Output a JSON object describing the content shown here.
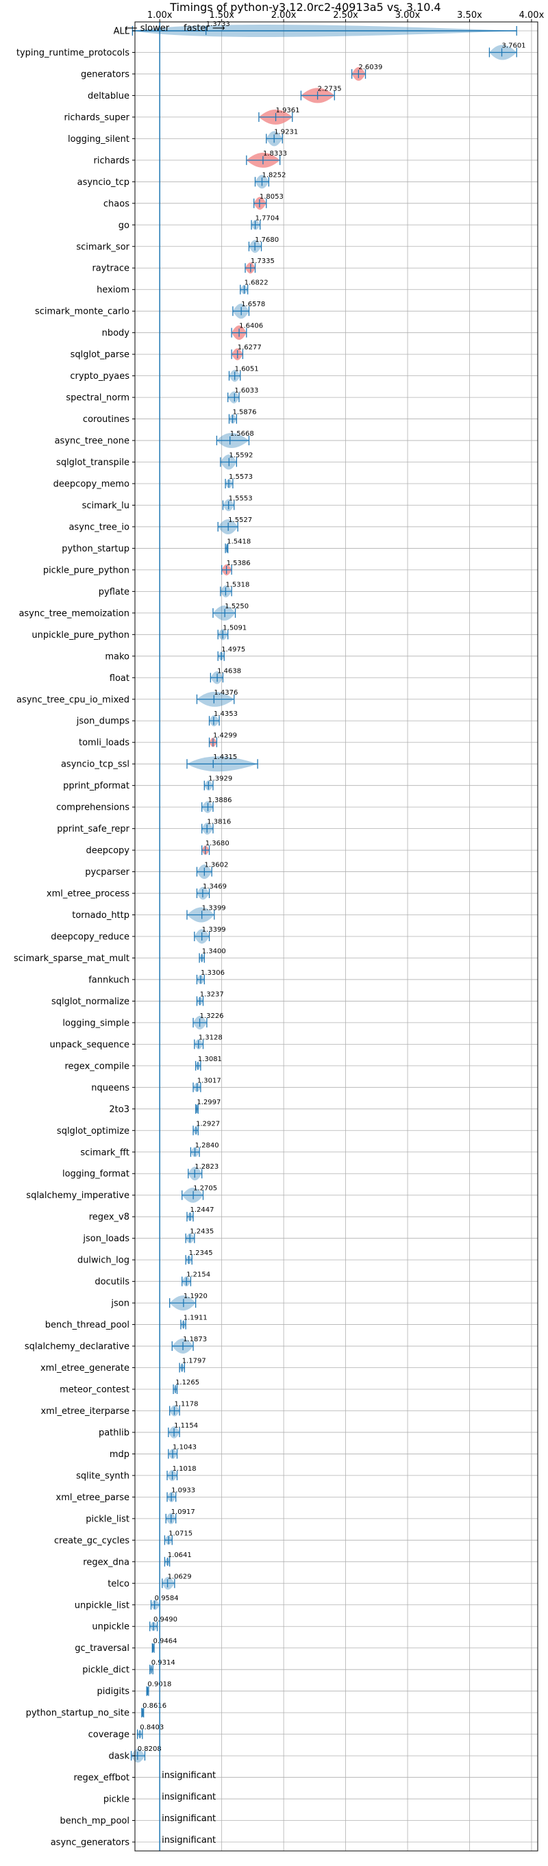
{
  "chart_data": {
    "type": "violin",
    "title": "Timings of python-v3.12.0rc2-40913a5 vs. 3.10.4",
    "direction_left": "⟵ slower",
    "direction_right": "faster ⟶",
    "xlim": [
      0.8,
      4.05
    ],
    "x_ticks": [
      1.0,
      1.5,
      2.0,
      2.5,
      3.0,
      3.5,
      4.0
    ],
    "x_tick_labels": [
      "1.00x",
      "1.50x",
      "2.00x",
      "2.50x",
      "3.00x",
      "3.50x",
      "4.00x"
    ],
    "reference_line": 1.0,
    "grid": true,
    "benchmarks": [
      {
        "name": "ALL",
        "value": 1.3733,
        "label": "1.3733",
        "min": 0.78,
        "max": 3.88,
        "color": "blue",
        "summary": true
      },
      {
        "name": "typing_runtime_protocols",
        "value": 3.7601,
        "label": "3.7601",
        "min": 3.66,
        "max": 3.88,
        "color": "blue"
      },
      {
        "name": "generators",
        "value": 2.6039,
        "label": "2.6039",
        "min": 2.55,
        "max": 2.66,
        "color": "red"
      },
      {
        "name": "deltablue",
        "value": 2.2735,
        "label": "2.2735",
        "min": 2.14,
        "max": 2.41,
        "color": "red"
      },
      {
        "name": "richards_super",
        "value": 1.9361,
        "label": "1.9361",
        "min": 1.8,
        "max": 2.07,
        "color": "red"
      },
      {
        "name": "logging_silent",
        "value": 1.9231,
        "label": "1.9231",
        "min": 1.86,
        "max": 1.99,
        "color": "blue"
      },
      {
        "name": "richards",
        "value": 1.8333,
        "label": "1.8333",
        "min": 1.7,
        "max": 1.97,
        "color": "red"
      },
      {
        "name": "asyncio_tcp",
        "value": 1.8252,
        "label": "1.8252",
        "min": 1.77,
        "max": 1.88,
        "color": "blue"
      },
      {
        "name": "chaos",
        "value": 1.8053,
        "label": "1.8053",
        "min": 1.76,
        "max": 1.86,
        "color": "red"
      },
      {
        "name": "go",
        "value": 1.7704,
        "label": "1.7704",
        "min": 1.74,
        "max": 1.81,
        "color": "blue"
      },
      {
        "name": "scimark_sor",
        "value": 1.768,
        "label": "1.7680",
        "min": 1.72,
        "max": 1.82,
        "color": "blue"
      },
      {
        "name": "raytrace",
        "value": 1.7335,
        "label": "1.7335",
        "min": 1.69,
        "max": 1.77,
        "color": "red"
      },
      {
        "name": "hexiom",
        "value": 1.6822,
        "label": "1.6822",
        "min": 1.65,
        "max": 1.71,
        "color": "blue"
      },
      {
        "name": "scimark_monte_carlo",
        "value": 1.6578,
        "label": "1.6578",
        "min": 1.59,
        "max": 1.72,
        "color": "blue"
      },
      {
        "name": "nbody",
        "value": 1.6406,
        "label": "1.6406",
        "min": 1.58,
        "max": 1.7,
        "color": "red"
      },
      {
        "name": "sqlglot_parse",
        "value": 1.6277,
        "label": "1.6277",
        "min": 1.58,
        "max": 1.67,
        "color": "red"
      },
      {
        "name": "crypto_pyaes",
        "value": 1.6051,
        "label": "1.6051",
        "min": 1.56,
        "max": 1.65,
        "color": "blue"
      },
      {
        "name": "spectral_norm",
        "value": 1.6033,
        "label": "1.6033",
        "min": 1.55,
        "max": 1.64,
        "color": "blue"
      },
      {
        "name": "coroutines",
        "value": 1.5876,
        "label": "1.5876",
        "min": 1.56,
        "max": 1.62,
        "color": "blue"
      },
      {
        "name": "async_tree_none",
        "value": 1.5668,
        "label": "1.5668",
        "min": 1.46,
        "max": 1.72,
        "color": "blue"
      },
      {
        "name": "sqlglot_transpile",
        "value": 1.5592,
        "label": "1.5592",
        "min": 1.49,
        "max": 1.62,
        "color": "blue"
      },
      {
        "name": "deepcopy_memo",
        "value": 1.5573,
        "label": "1.5573",
        "min": 1.53,
        "max": 1.59,
        "color": "blue"
      },
      {
        "name": "scimark_lu",
        "value": 1.5553,
        "label": "1.5553",
        "min": 1.51,
        "max": 1.6,
        "color": "blue"
      },
      {
        "name": "async_tree_io",
        "value": 1.5527,
        "label": "1.5527",
        "min": 1.47,
        "max": 1.63,
        "color": "blue"
      },
      {
        "name": "python_startup",
        "value": 1.5418,
        "label": "1.5418",
        "min": 1.53,
        "max": 1.55,
        "color": "blue"
      },
      {
        "name": "pickle_pure_python",
        "value": 1.5386,
        "label": "1.5386",
        "min": 1.5,
        "max": 1.58,
        "color": "red"
      },
      {
        "name": "pyflate",
        "value": 1.5318,
        "label": "1.5318",
        "min": 1.49,
        "max": 1.58,
        "color": "blue"
      },
      {
        "name": "async_tree_memoization",
        "value": 1.525,
        "label": "1.5250",
        "min": 1.43,
        "max": 1.61,
        "color": "blue"
      },
      {
        "name": "unpickle_pure_python",
        "value": 1.5091,
        "label": "1.5091",
        "min": 1.47,
        "max": 1.55,
        "color": "blue"
      },
      {
        "name": "mako",
        "value": 1.4975,
        "label": "1.4975",
        "min": 1.47,
        "max": 1.52,
        "color": "blue"
      },
      {
        "name": "float",
        "value": 1.4638,
        "label": "1.4638",
        "min": 1.41,
        "max": 1.51,
        "color": "blue"
      },
      {
        "name": "async_tree_cpu_io_mixed",
        "value": 1.4376,
        "label": "1.4376",
        "min": 1.3,
        "max": 1.6,
        "color": "blue"
      },
      {
        "name": "json_dumps",
        "value": 1.4353,
        "label": "1.4353",
        "min": 1.4,
        "max": 1.48,
        "color": "blue"
      },
      {
        "name": "tomli_loads",
        "value": 1.4299,
        "label": "1.4299",
        "min": 1.4,
        "max": 1.46,
        "color": "red"
      },
      {
        "name": "asyncio_tcp_ssl",
        "value": 1.4315,
        "label": "1.4315",
        "min": 1.22,
        "max": 1.79,
        "color": "blue"
      },
      {
        "name": "pprint_pformat",
        "value": 1.3929,
        "label": "1.3929",
        "min": 1.36,
        "max": 1.43,
        "color": "blue"
      },
      {
        "name": "comprehensions",
        "value": 1.3886,
        "label": "1.3886",
        "min": 1.34,
        "max": 1.43,
        "color": "blue"
      },
      {
        "name": "pprint_safe_repr",
        "value": 1.3816,
        "label": "1.3816",
        "min": 1.34,
        "max": 1.43,
        "color": "blue"
      },
      {
        "name": "deepcopy",
        "value": 1.368,
        "label": "1.3680",
        "min": 1.34,
        "max": 1.4,
        "color": "red"
      },
      {
        "name": "pycparser",
        "value": 1.3602,
        "label": "1.3602",
        "min": 1.3,
        "max": 1.42,
        "color": "blue"
      },
      {
        "name": "xml_etree_process",
        "value": 1.3469,
        "label": "1.3469",
        "min": 1.3,
        "max": 1.4,
        "color": "blue"
      },
      {
        "name": "tornado_http",
        "value": 1.3399,
        "label": "1.3399",
        "min": 1.22,
        "max": 1.44,
        "color": "blue"
      },
      {
        "name": "deepcopy_reduce",
        "value": 1.3399,
        "label": "1.3399",
        "min": 1.28,
        "max": 1.4,
        "color": "blue"
      },
      {
        "name": "scimark_sparse_mat_mult",
        "value": 1.34,
        "label": "1.3400",
        "min": 1.32,
        "max": 1.36,
        "color": "blue"
      },
      {
        "name": "fannkuch",
        "value": 1.3306,
        "label": "1.3306",
        "min": 1.3,
        "max": 1.36,
        "color": "blue"
      },
      {
        "name": "sqlglot_normalize",
        "value": 1.3237,
        "label": "1.3237",
        "min": 1.3,
        "max": 1.35,
        "color": "blue"
      },
      {
        "name": "logging_simple",
        "value": 1.3226,
        "label": "1.3226",
        "min": 1.27,
        "max": 1.38,
        "color": "blue"
      },
      {
        "name": "unpack_sequence",
        "value": 1.3128,
        "label": "1.3128",
        "min": 1.28,
        "max": 1.35,
        "color": "blue"
      },
      {
        "name": "regex_compile",
        "value": 1.3081,
        "label": "1.3081",
        "min": 1.29,
        "max": 1.33,
        "color": "blue"
      },
      {
        "name": "nqueens",
        "value": 1.3017,
        "label": "1.3017",
        "min": 1.27,
        "max": 1.33,
        "color": "blue"
      },
      {
        "name": "2to3",
        "value": 1.2997,
        "label": "1.2997",
        "min": 1.29,
        "max": 1.31,
        "color": "blue"
      },
      {
        "name": "sqlglot_optimize",
        "value": 1.2927,
        "label": "1.2927",
        "min": 1.27,
        "max": 1.31,
        "color": "blue"
      },
      {
        "name": "scimark_fft",
        "value": 1.284,
        "label": "1.2840",
        "min": 1.25,
        "max": 1.32,
        "color": "blue"
      },
      {
        "name": "logging_format",
        "value": 1.2823,
        "label": "1.2823",
        "min": 1.23,
        "max": 1.34,
        "color": "blue"
      },
      {
        "name": "sqlalchemy_imperative",
        "value": 1.2705,
        "label": "1.2705",
        "min": 1.18,
        "max": 1.35,
        "color": "blue"
      },
      {
        "name": "regex_v8",
        "value": 1.2447,
        "label": "1.2447",
        "min": 1.22,
        "max": 1.27,
        "color": "blue"
      },
      {
        "name": "json_loads",
        "value": 1.2435,
        "label": "1.2435",
        "min": 1.21,
        "max": 1.28,
        "color": "blue"
      },
      {
        "name": "dulwich_log",
        "value": 1.2345,
        "label": "1.2345",
        "min": 1.21,
        "max": 1.26,
        "color": "blue"
      },
      {
        "name": "docutils",
        "value": 1.2154,
        "label": "1.2154",
        "min": 1.18,
        "max": 1.25,
        "color": "blue"
      },
      {
        "name": "json",
        "value": 1.192,
        "label": "1.1920",
        "min": 1.08,
        "max": 1.29,
        "color": "blue"
      },
      {
        "name": "bench_thread_pool",
        "value": 1.1911,
        "label": "1.1911",
        "min": 1.17,
        "max": 1.21,
        "color": "blue"
      },
      {
        "name": "sqlalchemy_declarative",
        "value": 1.1873,
        "label": "1.1873",
        "min": 1.1,
        "max": 1.27,
        "color": "blue"
      },
      {
        "name": "xml_etree_generate",
        "value": 1.1797,
        "label": "1.1797",
        "min": 1.16,
        "max": 1.2,
        "color": "blue"
      },
      {
        "name": "meteor_contest",
        "value": 1.1265,
        "label": "1.1265",
        "min": 1.11,
        "max": 1.14,
        "color": "blue"
      },
      {
        "name": "xml_etree_iterparse",
        "value": 1.1178,
        "label": "1.1178",
        "min": 1.08,
        "max": 1.16,
        "color": "blue"
      },
      {
        "name": "pathlib",
        "value": 1.1154,
        "label": "1.1154",
        "min": 1.07,
        "max": 1.16,
        "color": "blue"
      },
      {
        "name": "mdp",
        "value": 1.1043,
        "label": "1.1043",
        "min": 1.07,
        "max": 1.14,
        "color": "blue"
      },
      {
        "name": "sqlite_synth",
        "value": 1.1018,
        "label": "1.1018",
        "min": 1.06,
        "max": 1.14,
        "color": "blue"
      },
      {
        "name": "xml_etree_parse",
        "value": 1.0933,
        "label": "1.0933",
        "min": 1.06,
        "max": 1.13,
        "color": "blue"
      },
      {
        "name": "pickle_list",
        "value": 1.0917,
        "label": "1.0917",
        "min": 1.05,
        "max": 1.13,
        "color": "blue"
      },
      {
        "name": "create_gc_cycles",
        "value": 1.0715,
        "label": "1.0715",
        "min": 1.04,
        "max": 1.1,
        "color": "blue"
      },
      {
        "name": "regex_dna",
        "value": 1.0641,
        "label": "1.0641",
        "min": 1.04,
        "max": 1.08,
        "color": "blue"
      },
      {
        "name": "telco",
        "value": 1.0629,
        "label": "1.0629",
        "min": 1.02,
        "max": 1.12,
        "color": "blue"
      },
      {
        "name": "unpickle_list",
        "value": 0.9584,
        "label": "0.9584",
        "min": 0.93,
        "max": 1.0,
        "color": "blue"
      },
      {
        "name": "unpickle",
        "value": 0.949,
        "label": "0.9490",
        "min": 0.92,
        "max": 0.98,
        "color": "blue"
      },
      {
        "name": "gc_traversal",
        "value": 0.9464,
        "label": "0.9464",
        "min": 0.94,
        "max": 0.955,
        "color": "blue"
      },
      {
        "name": "pickle_dict",
        "value": 0.9314,
        "label": "0.9314",
        "min": 0.92,
        "max": 0.945,
        "color": "blue"
      },
      {
        "name": "pidigits",
        "value": 0.9018,
        "label": "0.9018",
        "min": 0.895,
        "max": 0.91,
        "color": "blue"
      },
      {
        "name": "python_startup_no_site",
        "value": 0.8616,
        "label": "0.8616",
        "min": 0.855,
        "max": 0.87,
        "color": "blue"
      },
      {
        "name": "coverage",
        "value": 0.8403,
        "label": "0.8403",
        "min": 0.82,
        "max": 0.86,
        "color": "blue"
      },
      {
        "name": "dask",
        "value": 0.8208,
        "label": "0.8208",
        "min": 0.77,
        "max": 0.88,
        "color": "blue"
      },
      {
        "name": "regex_effbot",
        "insignificant": true,
        "label": "insignificant"
      },
      {
        "name": "pickle",
        "insignificant": true,
        "label": "insignificant"
      },
      {
        "name": "bench_mp_pool",
        "insignificant": true,
        "label": "insignificant"
      },
      {
        "name": "async_generators",
        "insignificant": true,
        "label": "insignificant"
      }
    ],
    "colors": {
      "blue_fill": "#1f77b4",
      "red_fill": "#f08080",
      "line": "#1f77b4",
      "grid": "#b0b0b0"
    }
  }
}
